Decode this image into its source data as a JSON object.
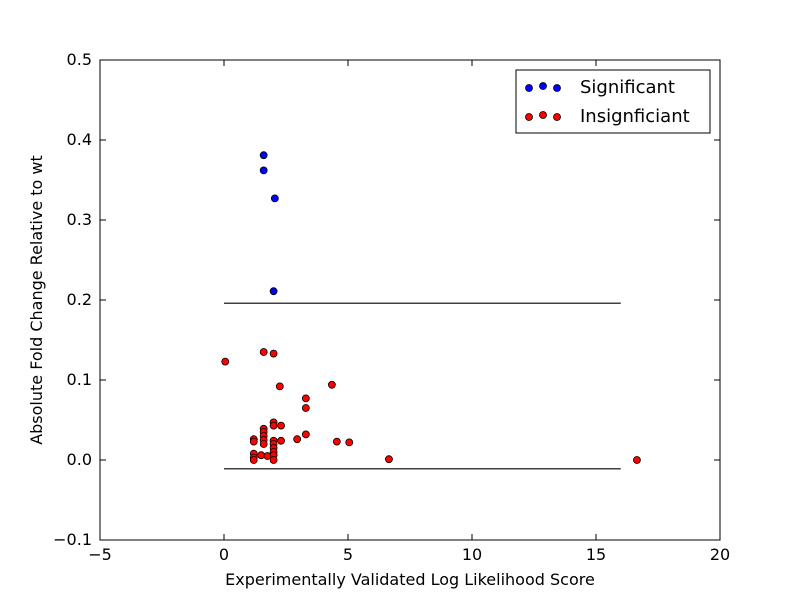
{
  "chart_data": {
    "type": "scatter",
    "xlabel": "Experimentally Validated Log Likelihood Score",
    "ylabel": "Absolute Fold Change Relative to wt",
    "xlim": [
      -5,
      20
    ],
    "ylim": [
      -0.1,
      0.5
    ],
    "x_ticks": [
      -5,
      0,
      5,
      10,
      15,
      20
    ],
    "x_tick_labels": [
      "−5",
      "0",
      "5",
      "10",
      "15",
      "20"
    ],
    "y_ticks": [
      -0.1,
      0.0,
      0.1,
      0.2,
      0.3,
      0.4,
      0.5
    ],
    "y_tick_labels": [
      "−0.1",
      "0.0",
      "0.1",
      "0.2",
      "0.3",
      "0.4",
      "0.5"
    ],
    "grid": false,
    "legend_position": "top-right",
    "series": [
      {
        "name": "Significant",
        "color": "#0000ff",
        "points": [
          [
            1.6,
            0.381
          ],
          [
            1.6,
            0.362
          ],
          [
            2.05,
            0.327
          ],
          [
            2.0,
            0.211
          ]
        ]
      },
      {
        "name": "Insignficiant",
        "color": "#ff0000",
        "points": [
          [
            0.05,
            0.123
          ],
          [
            1.6,
            0.135
          ],
          [
            2.0,
            0.133
          ],
          [
            2.25,
            0.092
          ],
          [
            4.35,
            0.094
          ],
          [
            3.3,
            0.077
          ],
          [
            3.3,
            0.065
          ],
          [
            3.3,
            0.032
          ],
          [
            2.3,
            0.043
          ],
          [
            2.0,
            0.047
          ],
          [
            2.0,
            0.043
          ],
          [
            1.6,
            0.039
          ],
          [
            1.6,
            0.035
          ],
          [
            1.6,
            0.03
          ],
          [
            1.6,
            0.025
          ],
          [
            1.2,
            0.026
          ],
          [
            1.2,
            0.023
          ],
          [
            1.6,
            0.02
          ],
          [
            2.0,
            0.024
          ],
          [
            2.0,
            0.02
          ],
          [
            2.3,
            0.024
          ],
          [
            2.95,
            0.026
          ],
          [
            4.55,
            0.023
          ],
          [
            5.05,
            0.022
          ],
          [
            2.0,
            0.015
          ],
          [
            2.0,
            0.01
          ],
          [
            2.0,
            0.006
          ],
          [
            1.2,
            0.008
          ],
          [
            1.2,
            0.003
          ],
          [
            1.5,
            0.006
          ],
          [
            1.75,
            0.005
          ],
          [
            2.0,
            0.0
          ],
          [
            1.2,
            0.0
          ],
          [
            6.65,
            0.001
          ],
          [
            16.65,
            0.0
          ]
        ]
      }
    ],
    "reference_lines": [
      {
        "x": [
          0,
          16
        ],
        "y": 0.196,
        "color": "#000000"
      },
      {
        "x": [
          0,
          16
        ],
        "y": -0.011,
        "color": "#000000"
      }
    ]
  }
}
